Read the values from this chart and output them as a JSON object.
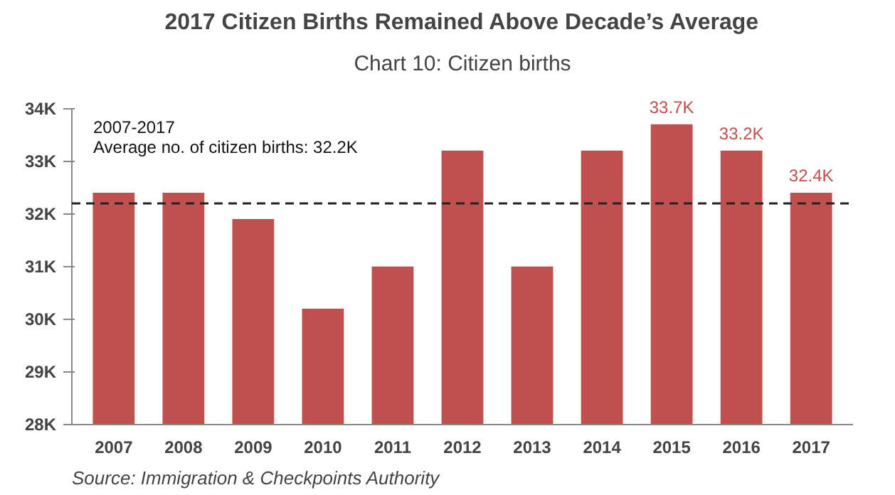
{
  "chart_data": {
    "type": "bar",
    "title": "2017 Citizen Births Remained Above Decade’s Average",
    "subtitle": "Chart 10: Citizen births",
    "categories": [
      "2007",
      "2008",
      "2009",
      "2010",
      "2011",
      "2012",
      "2013",
      "2014",
      "2015",
      "2016",
      "2017"
    ],
    "values": [
      32.4,
      32.4,
      31.9,
      30.2,
      31.0,
      33.2,
      31.0,
      33.2,
      33.7,
      33.2,
      32.4
    ],
    "value_labels": [
      null,
      null,
      null,
      null,
      null,
      null,
      null,
      null,
      "33.7K",
      "33.2K",
      "32.4K"
    ],
    "color": "#c0504d",
    "ylim": [
      28,
      34
    ],
    "yticks": [
      {
        "value": 28,
        "label": "28K"
      },
      {
        "value": 29,
        "label": "29K"
      },
      {
        "value": 30,
        "label": "30K"
      },
      {
        "value": 31,
        "label": "31K"
      },
      {
        "value": 32,
        "label": "32K"
      },
      {
        "value": 33,
        "label": "33K"
      },
      {
        "value": 34,
        "label": "34K"
      }
    ],
    "ref_lines": [
      {
        "axis": "y",
        "value": 32.2,
        "label": null,
        "color": "#222222",
        "line_style": "dashed"
      }
    ],
    "annotations": [
      "2007-2017",
      "Average no. of citizen births: 32.2K",
      "Source: Immigration & Checkpoints Authority"
    ],
    "grid": false
  }
}
